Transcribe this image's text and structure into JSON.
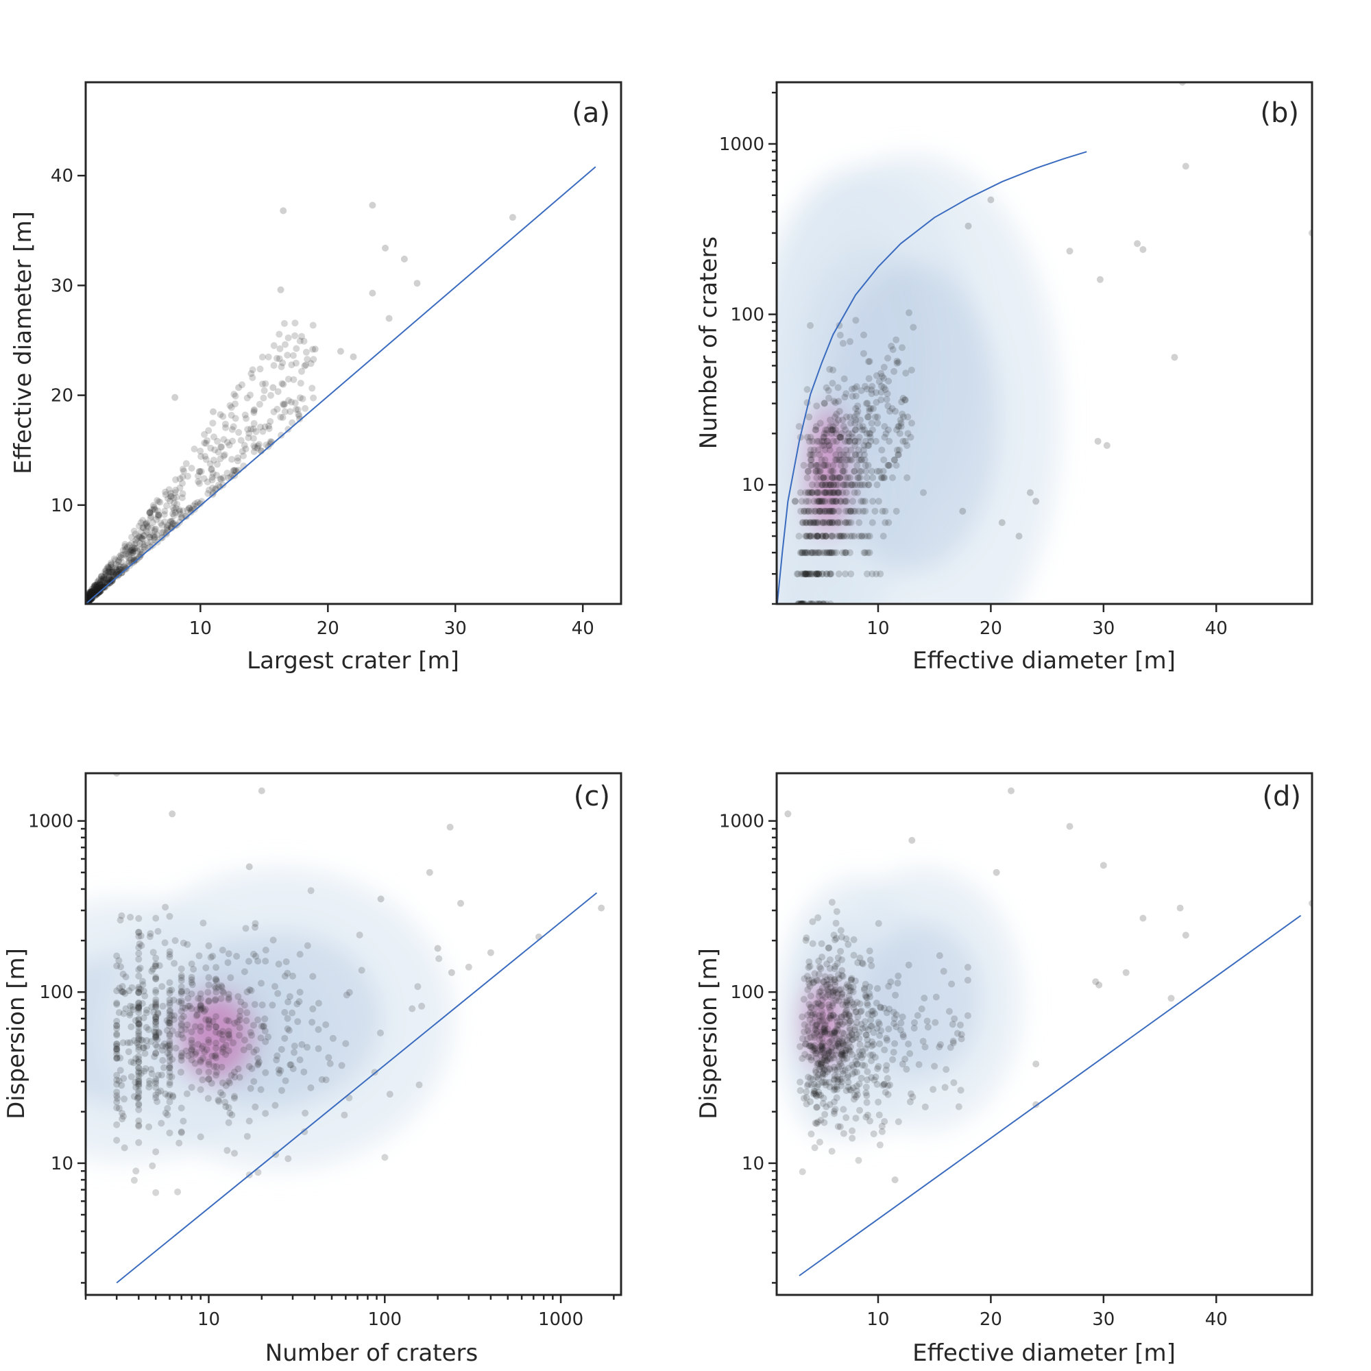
{
  "colors": {
    "point": "#1a1a1a",
    "line": "#3a6bbf",
    "kde_low": "#dde8f3",
    "kde_mid": "#b8c9e3",
    "kde_high": "#c55aa8"
  },
  "chart_data": [
    {
      "panel": "(a)",
      "type": "scatter",
      "xlabel": "Largest crater [m]",
      "ylabel": "Effective diameter [m]",
      "xscale": "linear",
      "yscale": "linear",
      "xlim": [
        1,
        43
      ],
      "ylim": [
        1,
        48.5
      ],
      "xticks": [
        10,
        20,
        30,
        40
      ],
      "yticks": [
        10,
        20,
        30,
        40
      ],
      "line": {
        "x": [
          1,
          41
        ],
        "y": [
          1,
          40.8
        ]
      },
      "outliers": [
        [
          16.5,
          36.8
        ],
        [
          23.5,
          37.3
        ],
        [
          24.5,
          33.4
        ],
        [
          26,
          32.4
        ],
        [
          27,
          30.2
        ],
        [
          16.3,
          29.6
        ],
        [
          23.5,
          29.3
        ],
        [
          24.8,
          27
        ],
        [
          34.5,
          36.2
        ],
        [
          22,
          23.5
        ],
        [
          19,
          24.2
        ],
        [
          21,
          24
        ],
        [
          8,
          19.8
        ],
        [
          11,
          18.5
        ],
        [
          13,
          20.7
        ],
        [
          15.7,
          20.7
        ],
        [
          16.5,
          21
        ]
      ],
      "cloud_params": {
        "count": 900,
        "x_range": [
          1,
          19
        ],
        "concentration": 3.2,
        "ratio_min": 1.0,
        "ratio_max": 1.6
      },
      "kde": null
    },
    {
      "panel": "(b)",
      "type": "scatter",
      "xlabel": "Effective diameter [m]",
      "ylabel": "Number of craters",
      "xscale": "linear",
      "yscale": "log",
      "xlim": [
        1,
        48.5
      ],
      "ylim": [
        2,
        2300
      ],
      "xticks": [
        10,
        20,
        30,
        40
      ],
      "yticks": [
        10,
        100,
        1000
      ],
      "line": {
        "x": [
          1.05,
          1.5,
          2,
          3,
          4,
          5,
          6,
          8,
          10,
          12,
          15,
          18,
          21,
          24,
          26.5,
          28.5
        ],
        "y": [
          2,
          4,
          8,
          18,
          34,
          52,
          76,
          130,
          190,
          260,
          370,
          480,
          600,
          720,
          820,
          900
        ]
      },
      "outliers": [
        [
          37,
          2300
        ],
        [
          37.3,
          740
        ],
        [
          20,
          470
        ],
        [
          18,
          330
        ],
        [
          33.5,
          240
        ],
        [
          33,
          260
        ],
        [
          27,
          235
        ],
        [
          29.7,
          160
        ],
        [
          36.3,
          56
        ],
        [
          29.5,
          18
        ],
        [
          30.3,
          17
        ],
        [
          21,
          6
        ],
        [
          22.5,
          5
        ],
        [
          17.5,
          7
        ],
        [
          23.5,
          9
        ],
        [
          24,
          8
        ],
        [
          48.5,
          300
        ]
      ],
      "cloud_params": {
        "count": 650,
        "x_range": [
          2,
          16
        ],
        "ymin": 2,
        "ymax": 200
      },
      "kde": {
        "centers": [
          [
            4.2,
            5
          ],
          [
            5.5,
            12
          ],
          [
            7,
            30
          ],
          [
            9,
            60
          ],
          [
            13,
            25
          ]
        ],
        "spread": [
          [
            2.6,
            0.55
          ],
          [
            2.4,
            0.55
          ],
          [
            3.5,
            0.6
          ],
          [
            4.5,
            0.5
          ],
          [
            6,
            0.7
          ]
        ]
      }
    },
    {
      "panel": "(c)",
      "type": "scatter",
      "xlabel": "Number of craters",
      "ylabel": "Dispersion [m]",
      "xscale": "log",
      "yscale": "log",
      "xlim": [
        2,
        2200
      ],
      "ylim": [
        1.7,
        1900
      ],
      "xticks": [
        10,
        100,
        1000
      ],
      "yticks": [
        10,
        100,
        1000
      ],
      "line": {
        "x": [
          3,
          1600
        ],
        "y": [
          2,
          380
        ]
      },
      "outliers": [
        [
          3,
          1900
        ],
        [
          6.2,
          1100
        ],
        [
          20,
          1500
        ],
        [
          235,
          920
        ],
        [
          180,
          500
        ],
        [
          95,
          350
        ],
        [
          270,
          330
        ],
        [
          17,
          540
        ],
        [
          1700,
          310
        ],
        [
          750,
          210
        ],
        [
          400,
          170
        ],
        [
          300,
          140
        ],
        [
          240,
          130
        ],
        [
          200,
          180
        ]
      ],
      "cloud_params": {
        "count": 650,
        "x_range": [
          2,
          120
        ],
        "ymin": 3,
        "ymax": 500
      },
      "kde": {
        "centers": [
          [
            3.5,
            60
          ],
          [
            11,
            55
          ],
          [
            25,
            70
          ]
        ],
        "spread": [
          [
            0.4,
            0.35
          ],
          [
            0.3,
            0.25
          ],
          [
            0.45,
            0.4
          ]
        ]
      }
    },
    {
      "panel": "(d)",
      "type": "scatter",
      "xlabel": "Effective diameter [m]",
      "ylabel": "Dispersion [m]",
      "xscale": "linear",
      "yscale": "log",
      "xlim": [
        1,
        48.5
      ],
      "ylim": [
        1.7,
        1900
      ],
      "xticks": [
        10,
        20,
        30,
        40
      ],
      "yticks": [
        10,
        100,
        1000
      ],
      "line": {
        "x": [
          3,
          47.5
        ],
        "y": [
          2.2,
          280
        ]
      },
      "outliers": [
        [
          21.8,
          1500
        ],
        [
          2,
          1100
        ],
        [
          27,
          930
        ],
        [
          13,
          770
        ],
        [
          30,
          550
        ],
        [
          20.5,
          500
        ],
        [
          36.8,
          310
        ],
        [
          33.5,
          270
        ],
        [
          37.3,
          215
        ],
        [
          29.3,
          115
        ],
        [
          29.6,
          110
        ],
        [
          32,
          130
        ],
        [
          36,
          92
        ],
        [
          48.5,
          330
        ],
        [
          24,
          38
        ],
        [
          24,
          22
        ],
        [
          11.5,
          8
        ]
      ],
      "cloud_params": {
        "count": 650,
        "x_range": [
          2,
          18
        ],
        "ymin": 3,
        "ymax": 500
      },
      "kde": {
        "centers": [
          [
            5.2,
            65
          ],
          [
            8,
            80
          ],
          [
            14,
            90
          ]
        ],
        "spread": [
          [
            1.8,
            0.3
          ],
          [
            3,
            0.35
          ],
          [
            4,
            0.35
          ]
        ]
      }
    }
  ]
}
